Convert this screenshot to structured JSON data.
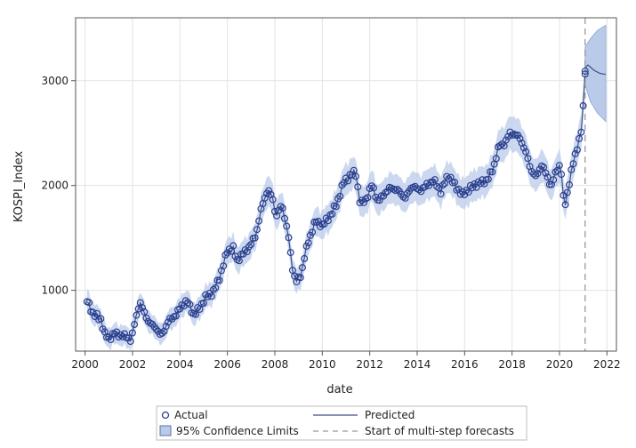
{
  "chart_data": {
    "type": "line",
    "xlabel": "date",
    "ylabel": "KOSPI_Index",
    "xlim": [
      1999.6,
      2022.4
    ],
    "ylim": [
      420,
      3600
    ],
    "x_ticks": [
      2000,
      2002,
      2004,
      2006,
      2008,
      2010,
      2012,
      2014,
      2016,
      2018,
      2020,
      2022
    ],
    "x_tick_labels": [
      "2000",
      "2002",
      "2004",
      "2006",
      "2008",
      "2010",
      "2012",
      "2014",
      "2016",
      "2018",
      "2020",
      "2022"
    ],
    "y_ticks": [
      1000,
      2000,
      3000
    ],
    "y_tick_labels": [
      "1000",
      "2000",
      "3000"
    ],
    "grid": true,
    "forecast_start": 2021.08,
    "legend_position": "bottom",
    "colors": {
      "actual": "#2a3f8f",
      "predicted": "#3d4f8c",
      "band": "#b9cbe9",
      "band_edge": "#8aa4d4",
      "forecast_line": "#9a9a9a",
      "grid": "#e3e3e3",
      "axis": "#555555"
    },
    "legend": {
      "actual": "Actual",
      "predicted": "Predicted",
      "confidence": "95% Confidence Limits",
      "forecast_start": "Start of multi-step forecasts"
    },
    "actual_keypoints": [
      [
        2000.08,
        900
      ],
      [
        2000.33,
        780
      ],
      [
        2000.67,
        720
      ],
      [
        2000.83,
        580
      ],
      [
        2001.0,
        540
      ],
      [
        2001.25,
        590
      ],
      [
        2001.5,
        570
      ],
      [
        2001.75,
        560
      ],
      [
        2001.95,
        520
      ],
      [
        2002.1,
        700
      ],
      [
        2002.3,
        890
      ],
      [
        2002.45,
        810
      ],
      [
        2002.7,
        690
      ],
      [
        2003.0,
        640
      ],
      [
        2003.2,
        560
      ],
      [
        2003.5,
        700
      ],
      [
        2003.8,
        760
      ],
      [
        2004.1,
        860
      ],
      [
        2004.3,
        900
      ],
      [
        2004.6,
        760
      ],
      [
        2004.9,
        860
      ],
      [
        2005.1,
        940
      ],
      [
        2005.4,
        980
      ],
      [
        2005.7,
        1140
      ],
      [
        2006.0,
        1380
      ],
      [
        2006.25,
        1400
      ],
      [
        2006.4,
        1280
      ],
      [
        2006.7,
        1360
      ],
      [
        2006.95,
        1420
      ],
      [
        2007.2,
        1530
      ],
      [
        2007.45,
        1800
      ],
      [
        2007.7,
        1960
      ],
      [
        2007.9,
        1880
      ],
      [
        2008.05,
        1700
      ],
      [
        2008.3,
        1820
      ],
      [
        2008.55,
        1550
      ],
      [
        2008.75,
        1200
      ],
      [
        2008.9,
        1080
      ],
      [
        2009.1,
        1140
      ],
      [
        2009.3,
        1380
      ],
      [
        2009.5,
        1520
      ],
      [
        2009.7,
        1660
      ],
      [
        2010.0,
        1620
      ],
      [
        2010.3,
        1700
      ],
      [
        2010.6,
        1820
      ],
      [
        2010.9,
        2030
      ],
      [
        2011.2,
        2100
      ],
      [
        2011.4,
        2130
      ],
      [
        2011.6,
        1820
      ],
      [
        2011.85,
        1870
      ],
      [
        2012.1,
        2010
      ],
      [
        2012.35,
        1840
      ],
      [
        2012.6,
        1920
      ],
      [
        2012.9,
        1980
      ],
      [
        2013.2,
        1950
      ],
      [
        2013.5,
        1880
      ],
      [
        2013.8,
        2000
      ],
      [
        2014.1,
        1950
      ],
      [
        2014.4,
        2000
      ],
      [
        2014.7,
        2050
      ],
      [
        2015.0,
        1940
      ],
      [
        2015.3,
        2100
      ],
      [
        2015.6,
        2000
      ],
      [
        2015.9,
        1910
      ],
      [
        2016.1,
        1950
      ],
      [
        2016.4,
        2000
      ],
      [
        2016.7,
        2030
      ],
      [
        2016.95,
        2050
      ],
      [
        2017.2,
        2160
      ],
      [
        2017.45,
        2380
      ],
      [
        2017.7,
        2400
      ],
      [
        2017.9,
        2500
      ],
      [
        2018.1,
        2490
      ],
      [
        2018.35,
        2450
      ],
      [
        2018.6,
        2300
      ],
      [
        2018.8,
        2150
      ],
      [
        2019.0,
        2080
      ],
      [
        2019.25,
        2200
      ],
      [
        2019.45,
        2100
      ],
      [
        2019.65,
        1990
      ],
      [
        2019.9,
        2160
      ],
      [
        2020.05,
        2200
      ],
      [
        2020.2,
        1780
      ],
      [
        2020.35,
        1950
      ],
      [
        2020.55,
        2190
      ],
      [
        2020.75,
        2370
      ],
      [
        2020.9,
        2480
      ],
      [
        2021.0,
        2750
      ],
      [
        2021.08,
        3090
      ]
    ],
    "forecast_keypoints": [
      [
        2021.08,
        3120
      ],
      [
        2021.2,
        3150
      ],
      [
        2021.45,
        3100
      ],
      [
        2021.7,
        3070
      ],
      [
        2021.95,
        3060
      ]
    ],
    "forecast_band": {
      "lower": [
        [
          2021.08,
          2960
        ],
        [
          2021.3,
          2800
        ],
        [
          2021.6,
          2690
        ],
        [
          2021.95,
          2610
        ]
      ],
      "upper": [
        [
          2021.08,
          3320
        ],
        [
          2021.3,
          3400
        ],
        [
          2021.6,
          3480
        ],
        [
          2021.95,
          3530
        ]
      ]
    }
  }
}
